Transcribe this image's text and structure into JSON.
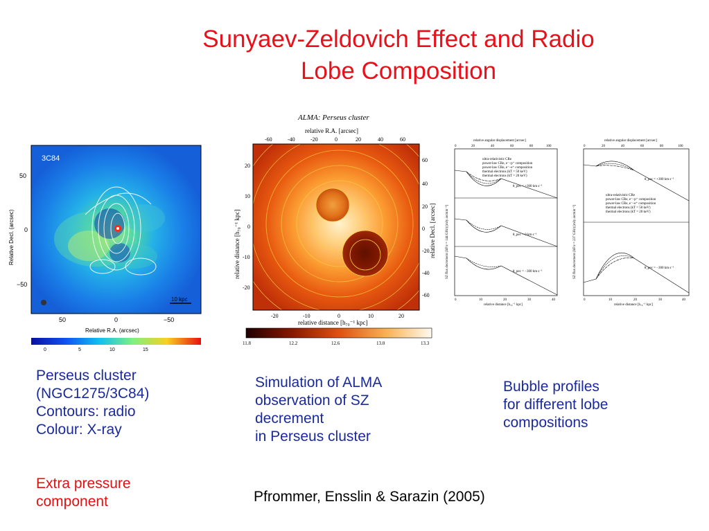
{
  "slide": {
    "title_line1": "Sunyaev-Zeldovich Effect and Radio",
    "title_line2": "Lobe Composition"
  },
  "captions": {
    "left": [
      "Perseus cluster",
      "(NGC1275/3C84)",
      "Contours: radio",
      "Colour: X-ray"
    ],
    "left_red": [
      "Extra pressure",
      "component"
    ],
    "middle": [
      "Simulation of ALMA",
      "observation of SZ",
      "decrement",
      "in Perseus cluster"
    ],
    "right": [
      "Bubble profiles",
      "for different lobe",
      "compositions"
    ],
    "citation": "Pfrommer, Ensslin & Sarazin (2005)"
  },
  "xray_figure": {
    "label": "3C84",
    "scale_bar": "10 kpc",
    "ylabel": "Relative Decl. (arcsec)",
    "xlabel": "Relative R.A. (arcsec)",
    "yticks": [
      "50",
      "0",
      "−50"
    ],
    "xticks": [
      "50",
      "0",
      "−50"
    ],
    "colorbar_ticks": [
      "0",
      "5",
      "10",
      "15"
    ],
    "colors": {
      "background": "#1e88e8",
      "hot": "#ff2a10"
    }
  },
  "alma_figure": {
    "title": "ALMA: Perseus cluster",
    "top_axis_label": "relative R.A. [arcsec]",
    "top_ticks": [
      "-60",
      "-40",
      "-20",
      "0",
      "20",
      "40",
      "60"
    ],
    "left_label": "relative distance [h₇₀⁻¹ kpc]",
    "left_ticks": [
      "20",
      "10",
      "0",
      "-10",
      "-20"
    ],
    "right_label": "relative Decl. [arcsec]",
    "right_ticks": [
      "60",
      "40",
      "20",
      "0",
      "-20",
      "-40",
      "-60"
    ],
    "bottom_label": "relative distance [h₇₀⁻¹ kpc]",
    "bottom_ticks": [
      "-20",
      "-10",
      "0",
      "10",
      "20"
    ],
    "colorbar_ticks": [
      "11.8",
      "12.2",
      "12.6",
      "13.0",
      "13.3"
    ]
  },
  "profile_plots": [
    {
      "top_label": "relative angular displacement [arcsec]",
      "top_ticks": [
        "0",
        "20",
        "40",
        "60",
        "80",
        "100"
      ],
      "ylabel": "SZ flux decrement (ΔF/ν = 144 GHz) [mJy arcmin⁻²]",
      "xlabel": "relative distance [h₇₀⁻¹ kpc]",
      "bottom_ticks": [
        "0",
        "10",
        "20",
        "30",
        "40"
      ],
      "legend": [
        "ultra-relativistic CRe",
        "power-law CRe, e⁻–p⁺ composition",
        "power-law CRe, e⁻–e⁺ composition",
        "thermal electrons (kT = 50 keV)",
        "thermal electrons (kT = 20 keV)"
      ],
      "panel_labels": [
        "θ_pec = +300 km s⁻¹",
        "θ_pec = 0 km s⁻¹",
        "θ_pec = −300 km s⁻¹"
      ]
    },
    {
      "top_label": "relative angular displacement [arcsec]",
      "top_ticks": [
        "0",
        "20",
        "40",
        "60",
        "80",
        "100"
      ],
      "ylabel": "SZ flux decrement (ΔF/ν = 237 GHz) [mJy arcmin⁻²]",
      "xlabel": "relative distance [h₇₀⁻¹ kpc]",
      "bottom_ticks": [
        "0",
        "10",
        "20",
        "30",
        "40"
      ],
      "legend": [
        "ultra-relativistic CRe",
        "power-law CRe, e⁻–p⁺ composition",
        "power-law CRe, e⁻–e⁺ composition",
        "thermal electrons (kT = 50 keV)",
        "thermal electrons (kT = 20 keV)"
      ],
      "panel_labels": [
        "θ_pec = +300 km s⁻¹",
        "θ_pec = −300 km s⁻¹"
      ]
    }
  ]
}
